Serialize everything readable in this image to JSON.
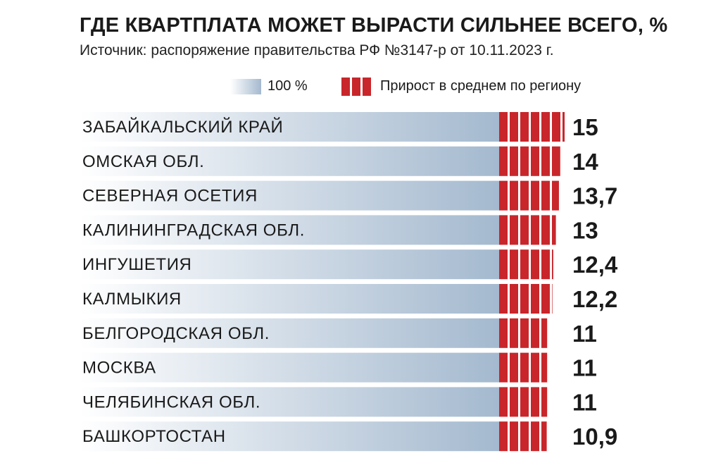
{
  "chart_data": {
    "type": "bar",
    "title": "ГДЕ КВАРТПЛАТА МОЖЕТ ВЫРАСТИ СИЛЬНЕЕ ВСЕГО, %",
    "subtitle": "Источник: распоряжение правительства РФ №3147-р от 10.11.2023 г.",
    "legend": {
      "base_label": "100 %",
      "increase_label": "Прирост в среднем по региону",
      "placement": "top-right"
    },
    "categories": [
      "ЗАБАЙКАЛЬСКИЙ КРАЙ",
      "ОМСКАЯ ОБЛ.",
      "СЕВЕРНАЯ ОСЕТИЯ",
      "КАЛИНИНГРАДСКАЯ ОБЛ.",
      "ИНГУШЕТИЯ",
      "КАЛМЫКИЯ",
      "БЕЛГОРОДСКАЯ ОБЛ.",
      "МОСКВА",
      "ЧЕЛЯБИНСКАЯ ОБЛ.",
      "БАШКОРТОСТАН"
    ],
    "values": [
      15,
      14,
      13.7,
      13,
      12.4,
      12.2,
      11,
      11,
      11,
      10.9
    ],
    "value_labels": [
      "15",
      "14",
      "13,7",
      "13",
      "12,4",
      "12,2",
      "11",
      "11",
      "11",
      "10,9"
    ],
    "base_value": 100,
    "colors": {
      "base_start": "#ffffff",
      "base_end": "#a4b9cf",
      "increase": "#c8262b"
    },
    "grid": false
  }
}
